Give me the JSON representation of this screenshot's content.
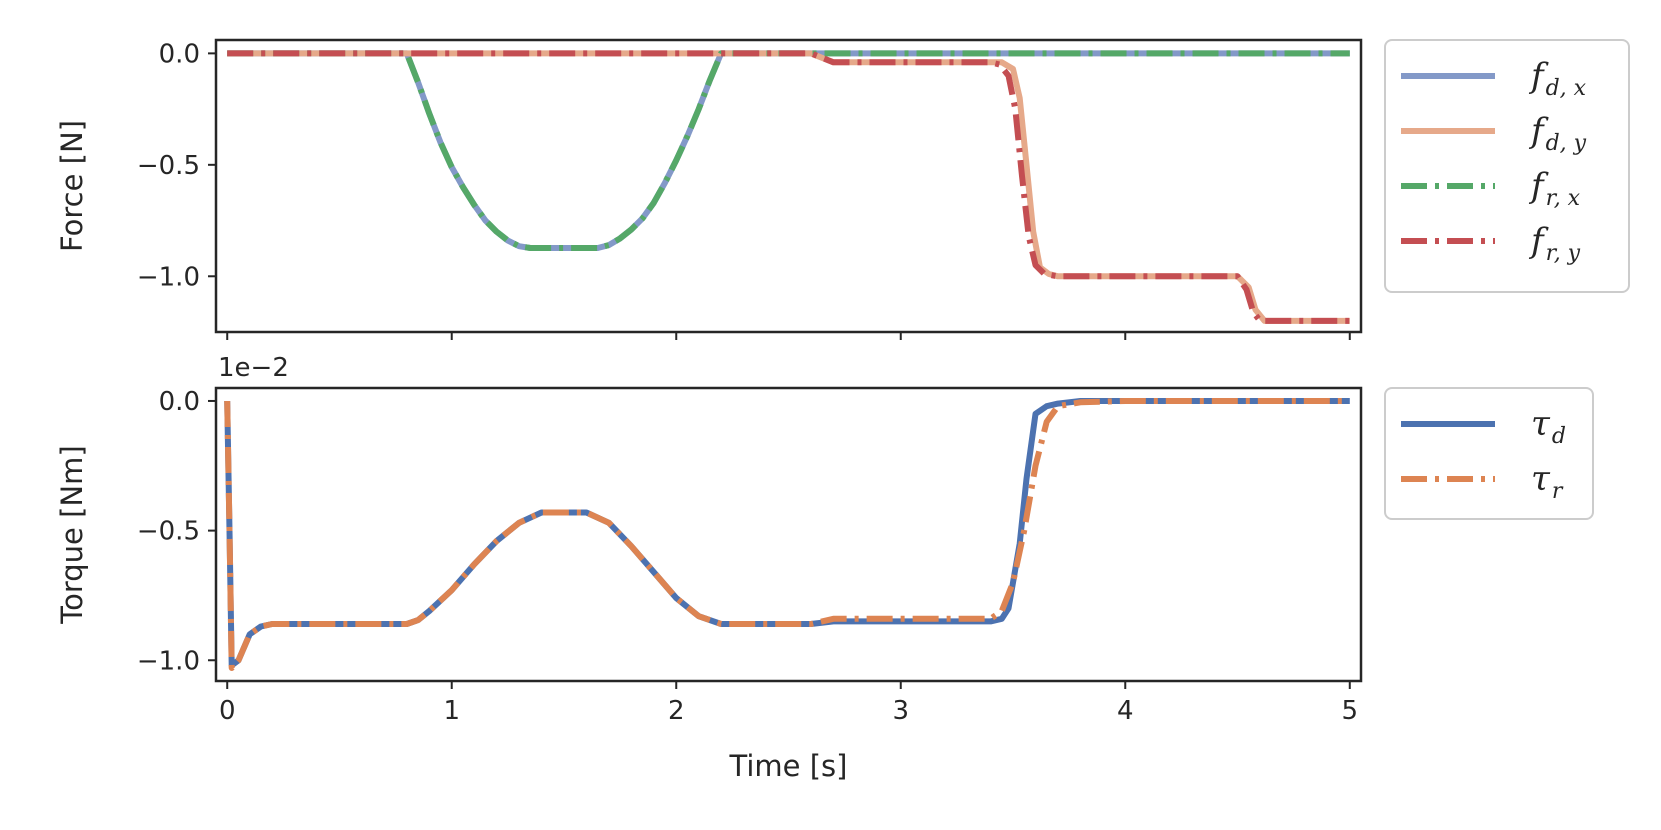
{
  "chart_data": [
    {
      "type": "line",
      "ylabel": "Force [N]",
      "xlabel": "",
      "xlim": [
        -0.05,
        5.05
      ],
      "ylim": [
        -1.25,
        0.06
      ],
      "xticks": [
        0,
        1,
        2,
        3,
        4,
        5
      ],
      "yticks": [
        0.0,
        -0.5,
        -1.0
      ],
      "ytick_labels": [
        "0.0",
        "−0.5",
        "−1.0"
      ],
      "grid": false,
      "legend_placement": "outside-right-top",
      "series": [
        {
          "name": "f_{d,x}",
          "legend_main": "f",
          "legend_sub": "d, x",
          "color": "#8399c8",
          "style": "solid",
          "x": [
            0,
            0.8,
            0.85,
            0.9,
            0.95,
            1.0,
            1.05,
            1.1,
            1.15,
            1.2,
            1.25,
            1.3,
            1.35,
            1.4,
            1.6,
            1.65,
            1.7,
            1.75,
            1.8,
            1.85,
            1.9,
            1.95,
            2.0,
            2.05,
            2.1,
            2.15,
            2.2,
            5.0
          ],
          "y": [
            0,
            0,
            -0.13,
            -0.27,
            -0.4,
            -0.51,
            -0.6,
            -0.68,
            -0.75,
            -0.8,
            -0.84,
            -0.865,
            -0.873,
            -0.873,
            -0.873,
            -0.873,
            -0.86,
            -0.83,
            -0.79,
            -0.74,
            -0.67,
            -0.58,
            -0.48,
            -0.37,
            -0.25,
            -0.12,
            0,
            0
          ]
        },
        {
          "name": "f_{d,y}",
          "legend_main": "f",
          "legend_sub": "d, y",
          "color": "#e6a98a",
          "style": "solid",
          "x": [
            0,
            2.6,
            2.7,
            3.4,
            3.45,
            3.5,
            3.53,
            3.56,
            3.59,
            3.62,
            3.66,
            3.7,
            4.5,
            4.55,
            4.58,
            4.62,
            5.0
          ],
          "y": [
            0,
            0,
            -0.04,
            -0.04,
            -0.04,
            -0.07,
            -0.2,
            -0.5,
            -0.8,
            -0.96,
            -0.99,
            -1.0,
            -1.0,
            -1.05,
            -1.15,
            -1.2,
            -1.2
          ]
        },
        {
          "name": "f_{r,x}",
          "legend_main": "f",
          "legend_sub": "r, x",
          "color": "#55a868",
          "style": "dashdot",
          "x": [
            0,
            0.8,
            0.85,
            0.9,
            0.95,
            1.0,
            1.05,
            1.1,
            1.15,
            1.2,
            1.25,
            1.3,
            1.35,
            1.4,
            1.6,
            1.65,
            1.7,
            1.75,
            1.8,
            1.85,
            1.9,
            1.95,
            2.0,
            2.05,
            2.1,
            2.15,
            2.2,
            5.0
          ],
          "y": [
            0,
            0,
            -0.13,
            -0.27,
            -0.4,
            -0.51,
            -0.6,
            -0.68,
            -0.75,
            -0.8,
            -0.84,
            -0.865,
            -0.873,
            -0.873,
            -0.873,
            -0.873,
            -0.86,
            -0.83,
            -0.79,
            -0.74,
            -0.67,
            -0.58,
            -0.48,
            -0.37,
            -0.25,
            -0.12,
            0,
            0
          ]
        },
        {
          "name": "f_{r,y}",
          "legend_main": "f",
          "legend_sub": "r, y",
          "color": "#c44e52",
          "style": "dashdot",
          "x": [
            0,
            2.6,
            2.7,
            3.4,
            3.44,
            3.48,
            3.51,
            3.54,
            3.57,
            3.6,
            3.64,
            3.7,
            4.5,
            4.54,
            4.57,
            4.6,
            5.0
          ],
          "y": [
            0,
            0,
            -0.04,
            -0.04,
            -0.05,
            -0.1,
            -0.25,
            -0.55,
            -0.82,
            -0.95,
            -0.99,
            -1.0,
            -1.0,
            -1.06,
            -1.16,
            -1.2,
            -1.2
          ]
        }
      ]
    },
    {
      "type": "line",
      "ylabel": "Torque [Nm]",
      "xlabel": "Time [s]",
      "offset_label": "1e−2",
      "xlim": [
        -0.05,
        5.05
      ],
      "ylim": [
        -1.08,
        0.05
      ],
      "xticks": [
        0,
        1,
        2,
        3,
        4,
        5
      ],
      "xtick_labels": [
        "0",
        "1",
        "2",
        "3",
        "4",
        "5"
      ],
      "yticks": [
        0.0,
        -0.5,
        -1.0
      ],
      "ytick_labels": [
        "0.0",
        "−0.5",
        "−1.0"
      ],
      "grid": false,
      "legend_placement": "outside-right-top",
      "series": [
        {
          "name": "τ_d",
          "legend_main": "τ",
          "legend_sub": "d",
          "color": "#4c72b0",
          "style": "solid",
          "x": [
            0,
            0.01,
            0.02,
            0.05,
            0.1,
            0.15,
            0.2,
            0.8,
            0.85,
            0.9,
            1.0,
            1.1,
            1.2,
            1.3,
            1.4,
            1.6,
            1.7,
            1.8,
            1.9,
            2.0,
            2.1,
            2.2,
            2.6,
            2.7,
            3.4,
            3.45,
            3.48,
            3.5,
            3.53,
            3.56,
            3.6,
            3.65,
            3.7,
            3.8,
            4.0,
            5.0
          ],
          "y": [
            0,
            -0.5,
            -1.02,
            -1.0,
            -0.9,
            -0.87,
            -0.86,
            -0.86,
            -0.845,
            -0.81,
            -0.73,
            -0.63,
            -0.54,
            -0.47,
            -0.43,
            -0.43,
            -0.47,
            -0.56,
            -0.66,
            -0.76,
            -0.83,
            -0.86,
            -0.86,
            -0.85,
            -0.85,
            -0.84,
            -0.8,
            -0.7,
            -0.55,
            -0.3,
            -0.05,
            -0.02,
            -0.01,
            0,
            0,
            0
          ]
        },
        {
          "name": "τ_r",
          "legend_main": "τ",
          "legend_sub": "r",
          "color": "#dd8452",
          "style": "dashdot",
          "x": [
            0,
            0.01,
            0.02,
            0.05,
            0.1,
            0.15,
            0.2,
            0.8,
            0.85,
            0.9,
            1.0,
            1.1,
            1.2,
            1.3,
            1.4,
            1.6,
            1.7,
            1.8,
            1.9,
            2.0,
            2.1,
            2.2,
            2.6,
            2.7,
            3.4,
            3.45,
            3.5,
            3.55,
            3.6,
            3.65,
            3.7,
            3.8,
            4.0,
            5.0
          ],
          "y": [
            0,
            -0.5,
            -1.03,
            -1.0,
            -0.9,
            -0.87,
            -0.86,
            -0.86,
            -0.845,
            -0.81,
            -0.73,
            -0.63,
            -0.54,
            -0.47,
            -0.43,
            -0.43,
            -0.47,
            -0.56,
            -0.66,
            -0.76,
            -0.83,
            -0.86,
            -0.86,
            -0.84,
            -0.84,
            -0.81,
            -0.7,
            -0.5,
            -0.25,
            -0.08,
            -0.02,
            -0.005,
            0,
            0
          ]
        }
      ]
    }
  ]
}
